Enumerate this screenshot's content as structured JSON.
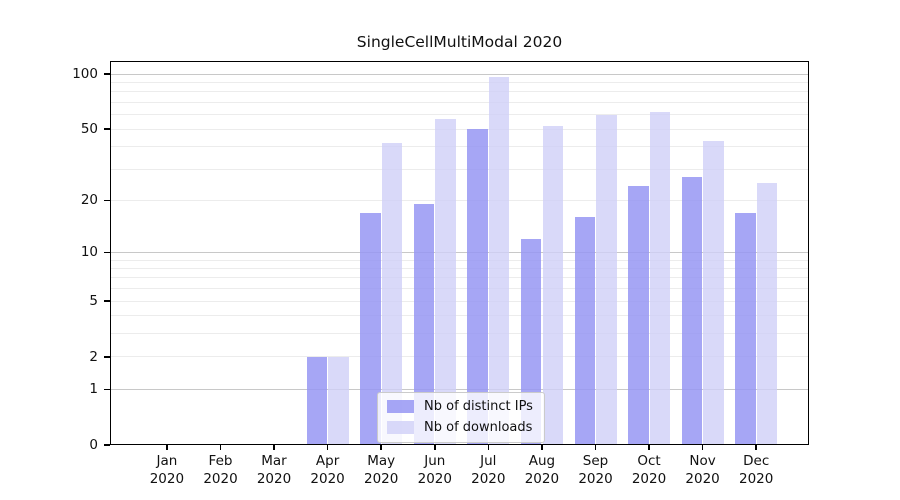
{
  "chart_data": {
    "type": "bar",
    "title": "SingleCellMultiModal 2020",
    "xlabel": "",
    "ylabel": "",
    "categories": [
      "Jan 2020",
      "Feb 2020",
      "Mar 2020",
      "Apr 2020",
      "May 2020",
      "Jun 2020",
      "Jul 2020",
      "Aug 2020",
      "Sep 2020",
      "Oct 2020",
      "Nov 2020",
      "Dec 2020"
    ],
    "series": [
      {
        "name": "Nb of distinct IPs",
        "color": "#9797f3",
        "values": [
          0,
          0,
          0,
          2,
          17,
          19,
          50,
          12,
          16,
          24,
          27,
          17
        ]
      },
      {
        "name": "Nb of downloads",
        "color": "#cfcff8",
        "values": [
          0,
          0,
          0,
          2,
          42,
          57,
          96,
          52,
          60,
          62,
          43,
          25
        ]
      }
    ],
    "y_axis": {
      "scale": "log10(1+value)",
      "tick_values": [
        0,
        1,
        2,
        5,
        10,
        20,
        50,
        100
      ],
      "decade_gridlines": [
        1,
        10,
        100
      ],
      "minor_gridlines": [
        2,
        3,
        4,
        5,
        6,
        7,
        8,
        9,
        20,
        30,
        40,
        50,
        60,
        70,
        80,
        90
      ],
      "ylim": [
        0,
        118
      ]
    },
    "grid": "horizontal",
    "legend_position": "bottom-center"
  },
  "colors": {
    "ips_bar": "#9797f3",
    "downloads_bar": "#cfcff8",
    "decade_grid": "#c8c8c8",
    "minor_grid": "#ececec",
    "spine": "#000000",
    "text": "#111111"
  }
}
